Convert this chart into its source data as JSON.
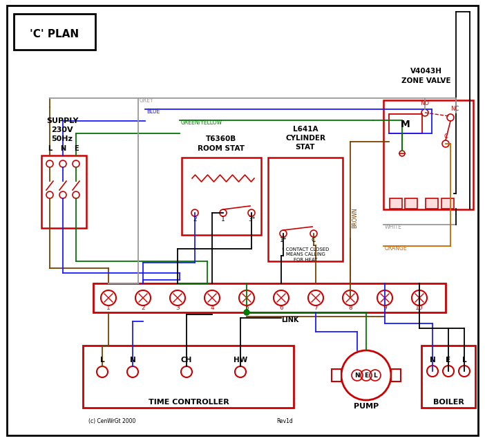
{
  "bg": "#ffffff",
  "black": "#000000",
  "red": "#cc0000",
  "blue": "#1a1aff",
  "green": "#007700",
  "brown": "#7b3f00",
  "grey": "#999999",
  "orange": "#cc6600",
  "supply_text": "SUPPLY\n230V\n50Hz",
  "zone_valve_title": "V4043H\nZONE VALVE",
  "room_stat_title": "T6360B\nROOM STAT",
  "cyl_stat_title": "L641A\nCYLINDER\nSTAT",
  "time_ctrl_title": "TIME CONTROLLER",
  "pump_title": "PUMP",
  "boiler_title": "BOILER",
  "footnote": "(c) CenWrGt 2000",
  "rev": "Rev1d",
  "fig_w": 7.02,
  "fig_h": 6.41,
  "dpi": 100
}
